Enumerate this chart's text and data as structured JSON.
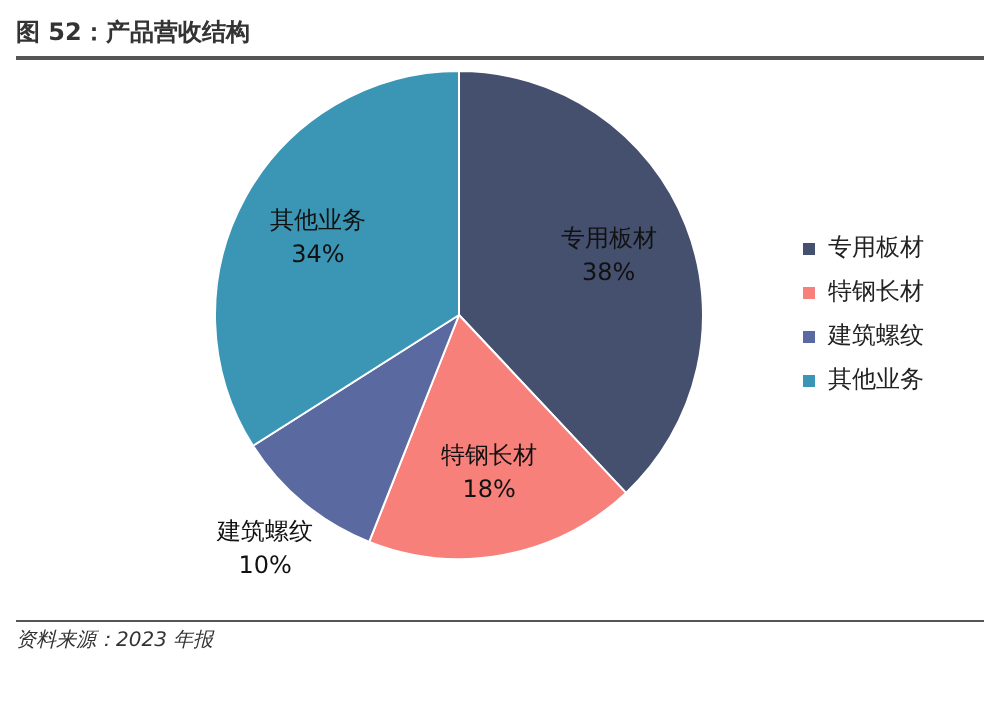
{
  "chart_data": {
    "type": "pie",
    "title": "图 52：产品营收结构",
    "categories": [
      "专用板材",
      "特钢长材",
      "建筑螺纹",
      "其他业务"
    ],
    "values": [
      38,
      18,
      10,
      34
    ],
    "value_labels": [
      "38%",
      "18%",
      "10%",
      "34%"
    ],
    "colors": [
      "#44506e",
      "#f8807a",
      "#5a6aa0",
      "#3b95b4"
    ],
    "legend": "right",
    "annotations": [
      "资料来源：2023 年报"
    ]
  }
}
